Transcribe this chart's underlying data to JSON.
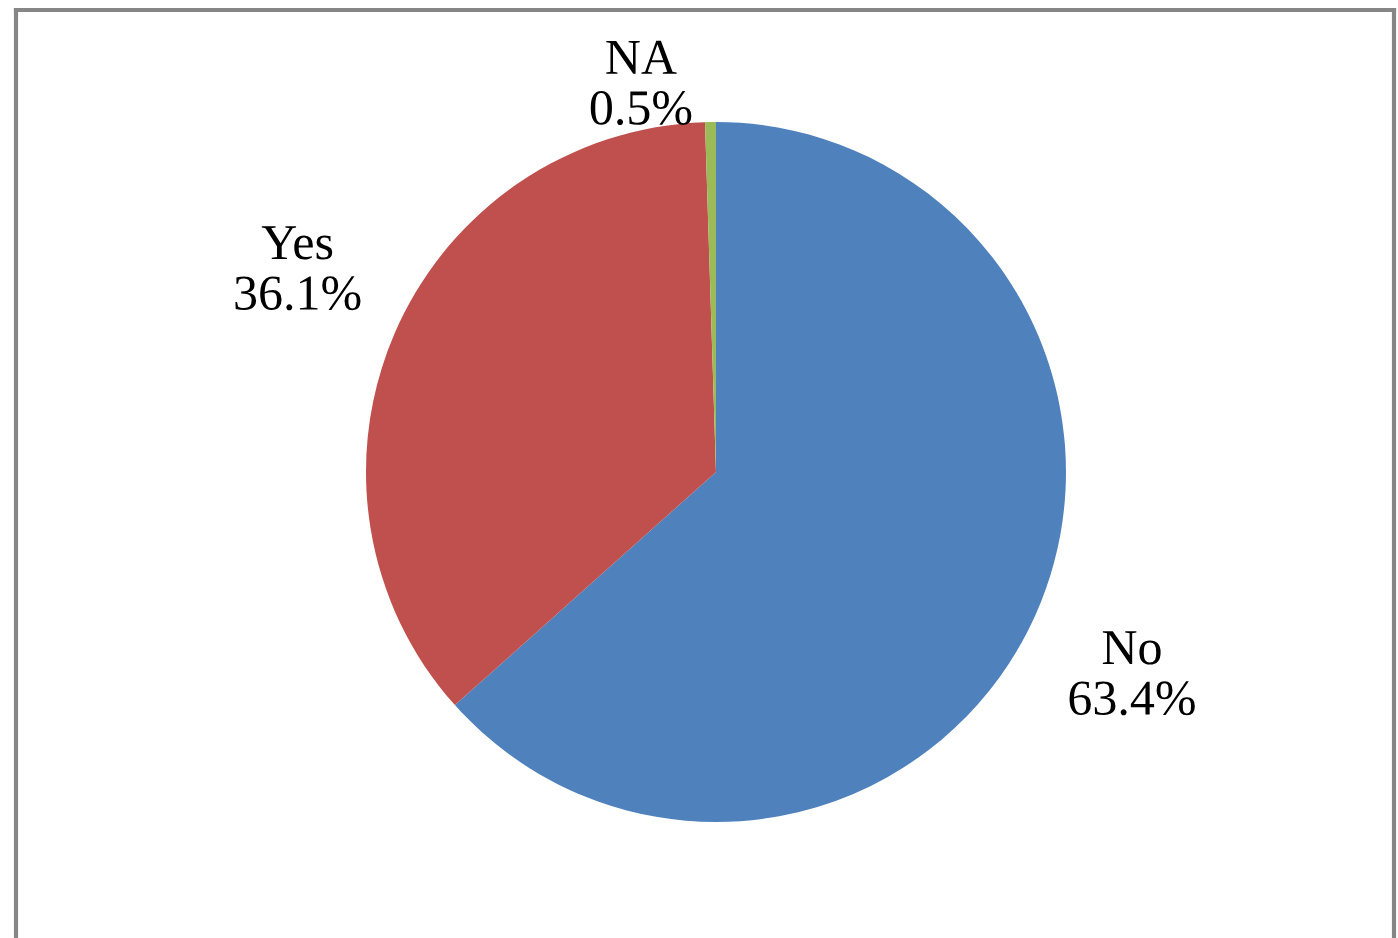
{
  "chart_data": {
    "type": "pie",
    "categories": [
      "No",
      "Yes",
      "NA"
    ],
    "values": [
      63.4,
      36.1,
      0.5
    ],
    "colors": [
      "#4f81bd",
      "#c0504d",
      "#9bbb59"
    ],
    "value_labels": [
      "63.4%",
      "36.1%",
      "0.5%"
    ]
  }
}
